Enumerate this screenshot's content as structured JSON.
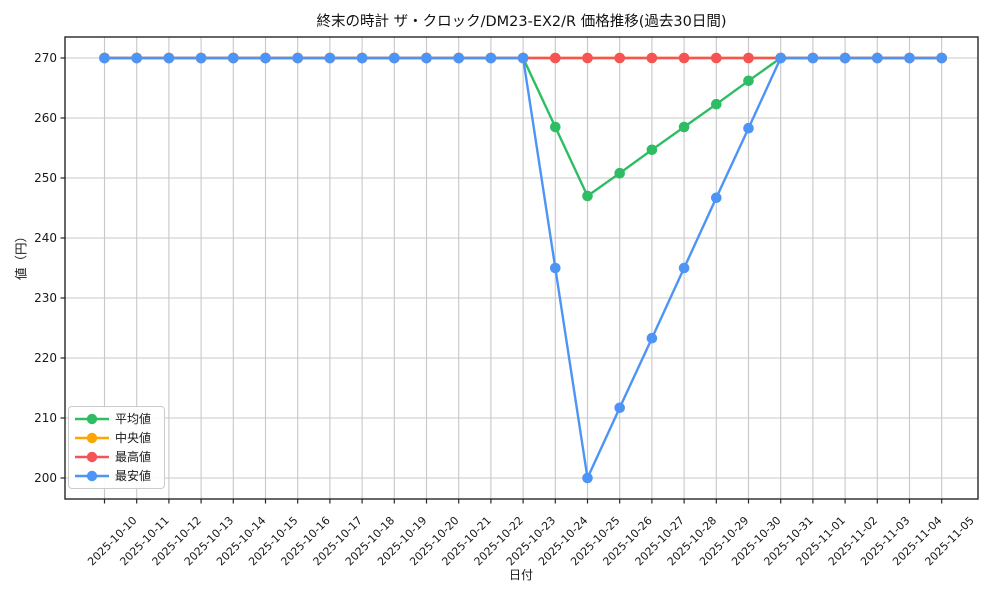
{
  "chart_data": {
    "type": "line",
    "title": "終末の時計 ザ・クロック/DM23-EX2/R 価格推移(過去30日間)",
    "xlabel": "日付",
    "ylabel": "値（円）",
    "x": [
      "2025-10-10",
      "2025-10-11",
      "2025-10-12",
      "2025-10-13",
      "2025-10-14",
      "2025-10-15",
      "2025-10-16",
      "2025-10-17",
      "2025-10-18",
      "2025-10-19",
      "2025-10-20",
      "2025-10-21",
      "2025-10-22",
      "2025-10-23",
      "2025-10-24",
      "2025-10-25",
      "2025-10-26",
      "2025-10-27",
      "2025-10-28",
      "2025-10-29",
      "2025-10-30",
      "2025-10-31",
      "2025-11-01",
      "2025-11-02",
      "2025-11-03",
      "2025-11-04",
      "2025-11-05"
    ],
    "series": [
      {
        "key": "avg",
        "name": "平均値",
        "color": "#2fbd63",
        "values": [
          270,
          270,
          270,
          270,
          270,
          270,
          270,
          270,
          270,
          270,
          270,
          270,
          270,
          270,
          258.5,
          247,
          250.8,
          254.7,
          258.5,
          262.3,
          266.2,
          270,
          270,
          270,
          270,
          270,
          270
        ]
      },
      {
        "key": "median",
        "name": "中央値",
        "color": "#ffa502",
        "values": [
          270,
          270,
          270,
          270,
          270,
          270,
          270,
          270,
          270,
          270,
          270,
          270,
          270,
          270,
          270,
          270,
          270,
          270,
          270,
          270,
          270,
          270,
          270,
          270,
          270,
          270,
          270
        ]
      },
      {
        "key": "max",
        "name": "最高値",
        "color": "#f65354",
        "values": [
          270,
          270,
          270,
          270,
          270,
          270,
          270,
          270,
          270,
          270,
          270,
          270,
          270,
          270,
          270,
          270,
          270,
          270,
          270,
          270,
          270,
          270,
          270,
          270,
          270,
          270,
          270
        ]
      },
      {
        "key": "min",
        "name": "最安値",
        "color": "#4d94f7",
        "values": [
          270,
          270,
          270,
          270,
          270,
          270,
          270,
          270,
          270,
          270,
          270,
          270,
          270,
          270,
          235,
          200,
          211.7,
          223.3,
          235,
          246.7,
          258.3,
          270,
          270,
          270,
          270,
          270,
          270
        ]
      }
    ],
    "ylim": [
      196.5,
      273.5
    ],
    "yticks": [
      200,
      210,
      220,
      230,
      240,
      250,
      260,
      270
    ],
    "grid": true,
    "legend_position": "lower left",
    "colors": {
      "grid": "#c8c8c8",
      "spine": "#262626",
      "text": "#191919",
      "background": "#ffffff"
    }
  }
}
